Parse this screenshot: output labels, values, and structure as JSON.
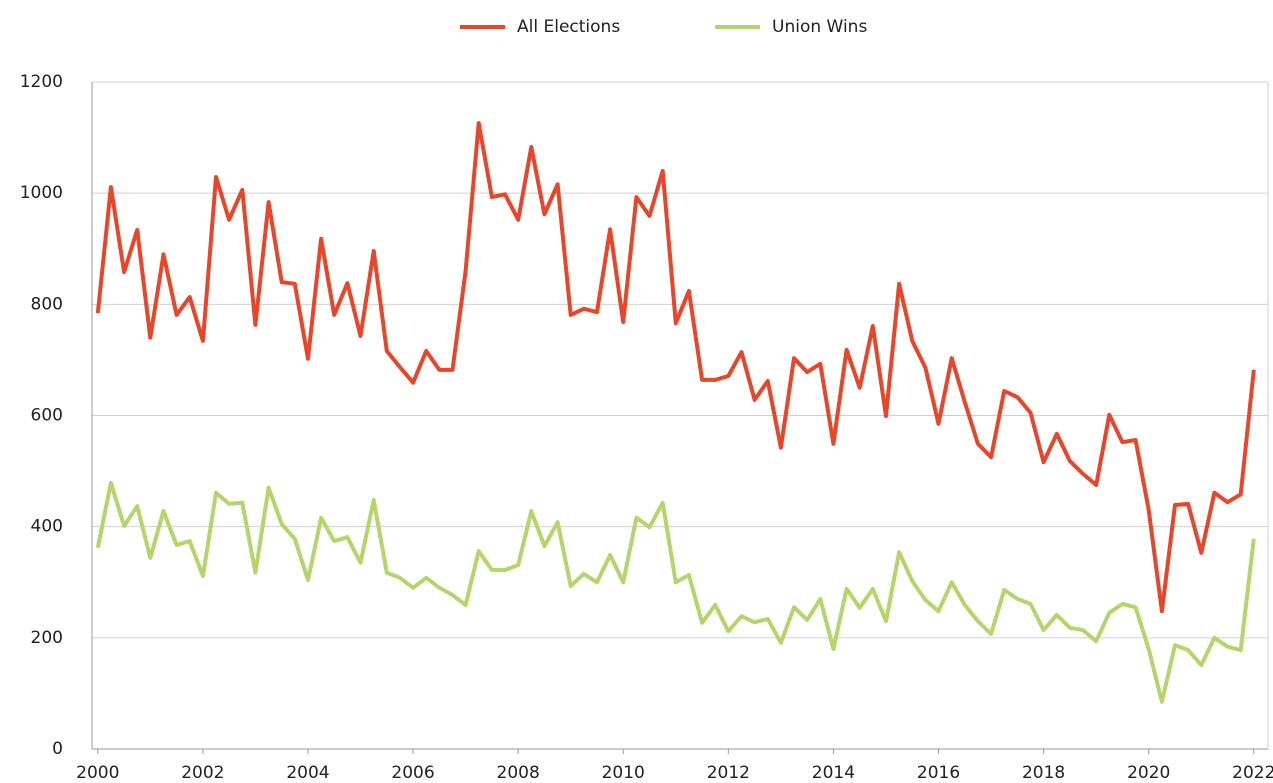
{
  "chart_data": {
    "type": "line",
    "x": [
      2000,
      2000.25,
      2000.5,
      2000.75,
      2001,
      2001.25,
      2001.5,
      2001.75,
      2002,
      2002.25,
      2002.5,
      2002.75,
      2003,
      2003.25,
      2003.5,
      2003.75,
      2004,
      2004.25,
      2004.5,
      2004.75,
      2005,
      2005.25,
      2005.5,
      2005.75,
      2006,
      2006.25,
      2006.5,
      2006.75,
      2007,
      2007.25,
      2007.5,
      2007.75,
      2008,
      2008.25,
      2008.5,
      2008.75,
      2009,
      2009.25,
      2009.5,
      2009.75,
      2010,
      2010.25,
      2010.5,
      2010.75,
      2011,
      2011.25,
      2011.5,
      2011.75,
      2012,
      2012.25,
      2012.5,
      2012.75,
      2013,
      2013.25,
      2013.5,
      2013.75,
      2014,
      2014.25,
      2014.5,
      2014.75,
      2015,
      2015.25,
      2015.5,
      2015.75,
      2016,
      2016.25,
      2016.5,
      2016.75,
      2017,
      2017.25,
      2017.5,
      2017.75,
      2018,
      2018.25,
      2018.5,
      2018.75,
      2019,
      2019.25,
      2019.5,
      2019.75,
      2020,
      2020.25,
      2020.5,
      2020.75,
      2021,
      2021.25,
      2021.5,
      2021.75,
      2022
    ],
    "series": [
      {
        "name": "All Elections",
        "color": "#e8462a",
        "values": [
          784,
          1011,
          858,
          934,
          740,
          890,
          781,
          813,
          734,
          1029,
          952,
          1006,
          763,
          984,
          840,
          837,
          702,
          918,
          781,
          838,
          743,
          896,
          716,
          687,
          659,
          716,
          682,
          682,
          860,
          1126,
          993,
          998,
          952,
          1083,
          962,
          1016,
          781,
          792,
          786,
          935,
          768,
          993,
          959,
          1040,
          766,
          824,
          664,
          664,
          671,
          714,
          628,
          662,
          542,
          703,
          678,
          693,
          549,
          718,
          650,
          761,
          599,
          837,
          734,
          686,
          585,
          703,
          624,
          549,
          525,
          644,
          633,
          605,
          516,
          567,
          518,
          495,
          475,
          601,
          552,
          556,
          430,
          248,
          439,
          441,
          353,
          461,
          444,
          458,
          682
        ]
      },
      {
        "name": "Union Wins",
        "color": "#b5d56a",
        "values": [
          362,
          479,
          401,
          437,
          344,
          428,
          367,
          374,
          311,
          461,
          441,
          443,
          317,
          470,
          405,
          378,
          304,
          416,
          374,
          381,
          335,
          448,
          317,
          308,
          290,
          308,
          290,
          277,
          259,
          356,
          322,
          322,
          331,
          428,
          365,
          408,
          293,
          315,
          300,
          349,
          300,
          416,
          399,
          443,
          300,
          313,
          227,
          259,
          212,
          239,
          228,
          234,
          191,
          255,
          232,
          270,
          180,
          288,
          254,
          288,
          230,
          354,
          302,
          268,
          248,
          300,
          259,
          230,
          207,
          286,
          270,
          261,
          214,
          241,
          218,
          214,
          194,
          245,
          261,
          255,
          180,
          85,
          187,
          178,
          151,
          200,
          184,
          178,
          378
        ]
      }
    ],
    "xlim": [
      1999.89,
      2022.27
    ],
    "xticks": [
      2000,
      2002,
      2004,
      2006,
      2008,
      2010,
      2012,
      2014,
      2016,
      2018,
      2020,
      2022
    ],
    "ylim": [
      0,
      1200
    ],
    "yticks": [
      0,
      200,
      400,
      600,
      800,
      1000,
      1200
    ],
    "grid": true,
    "legend": "top"
  }
}
